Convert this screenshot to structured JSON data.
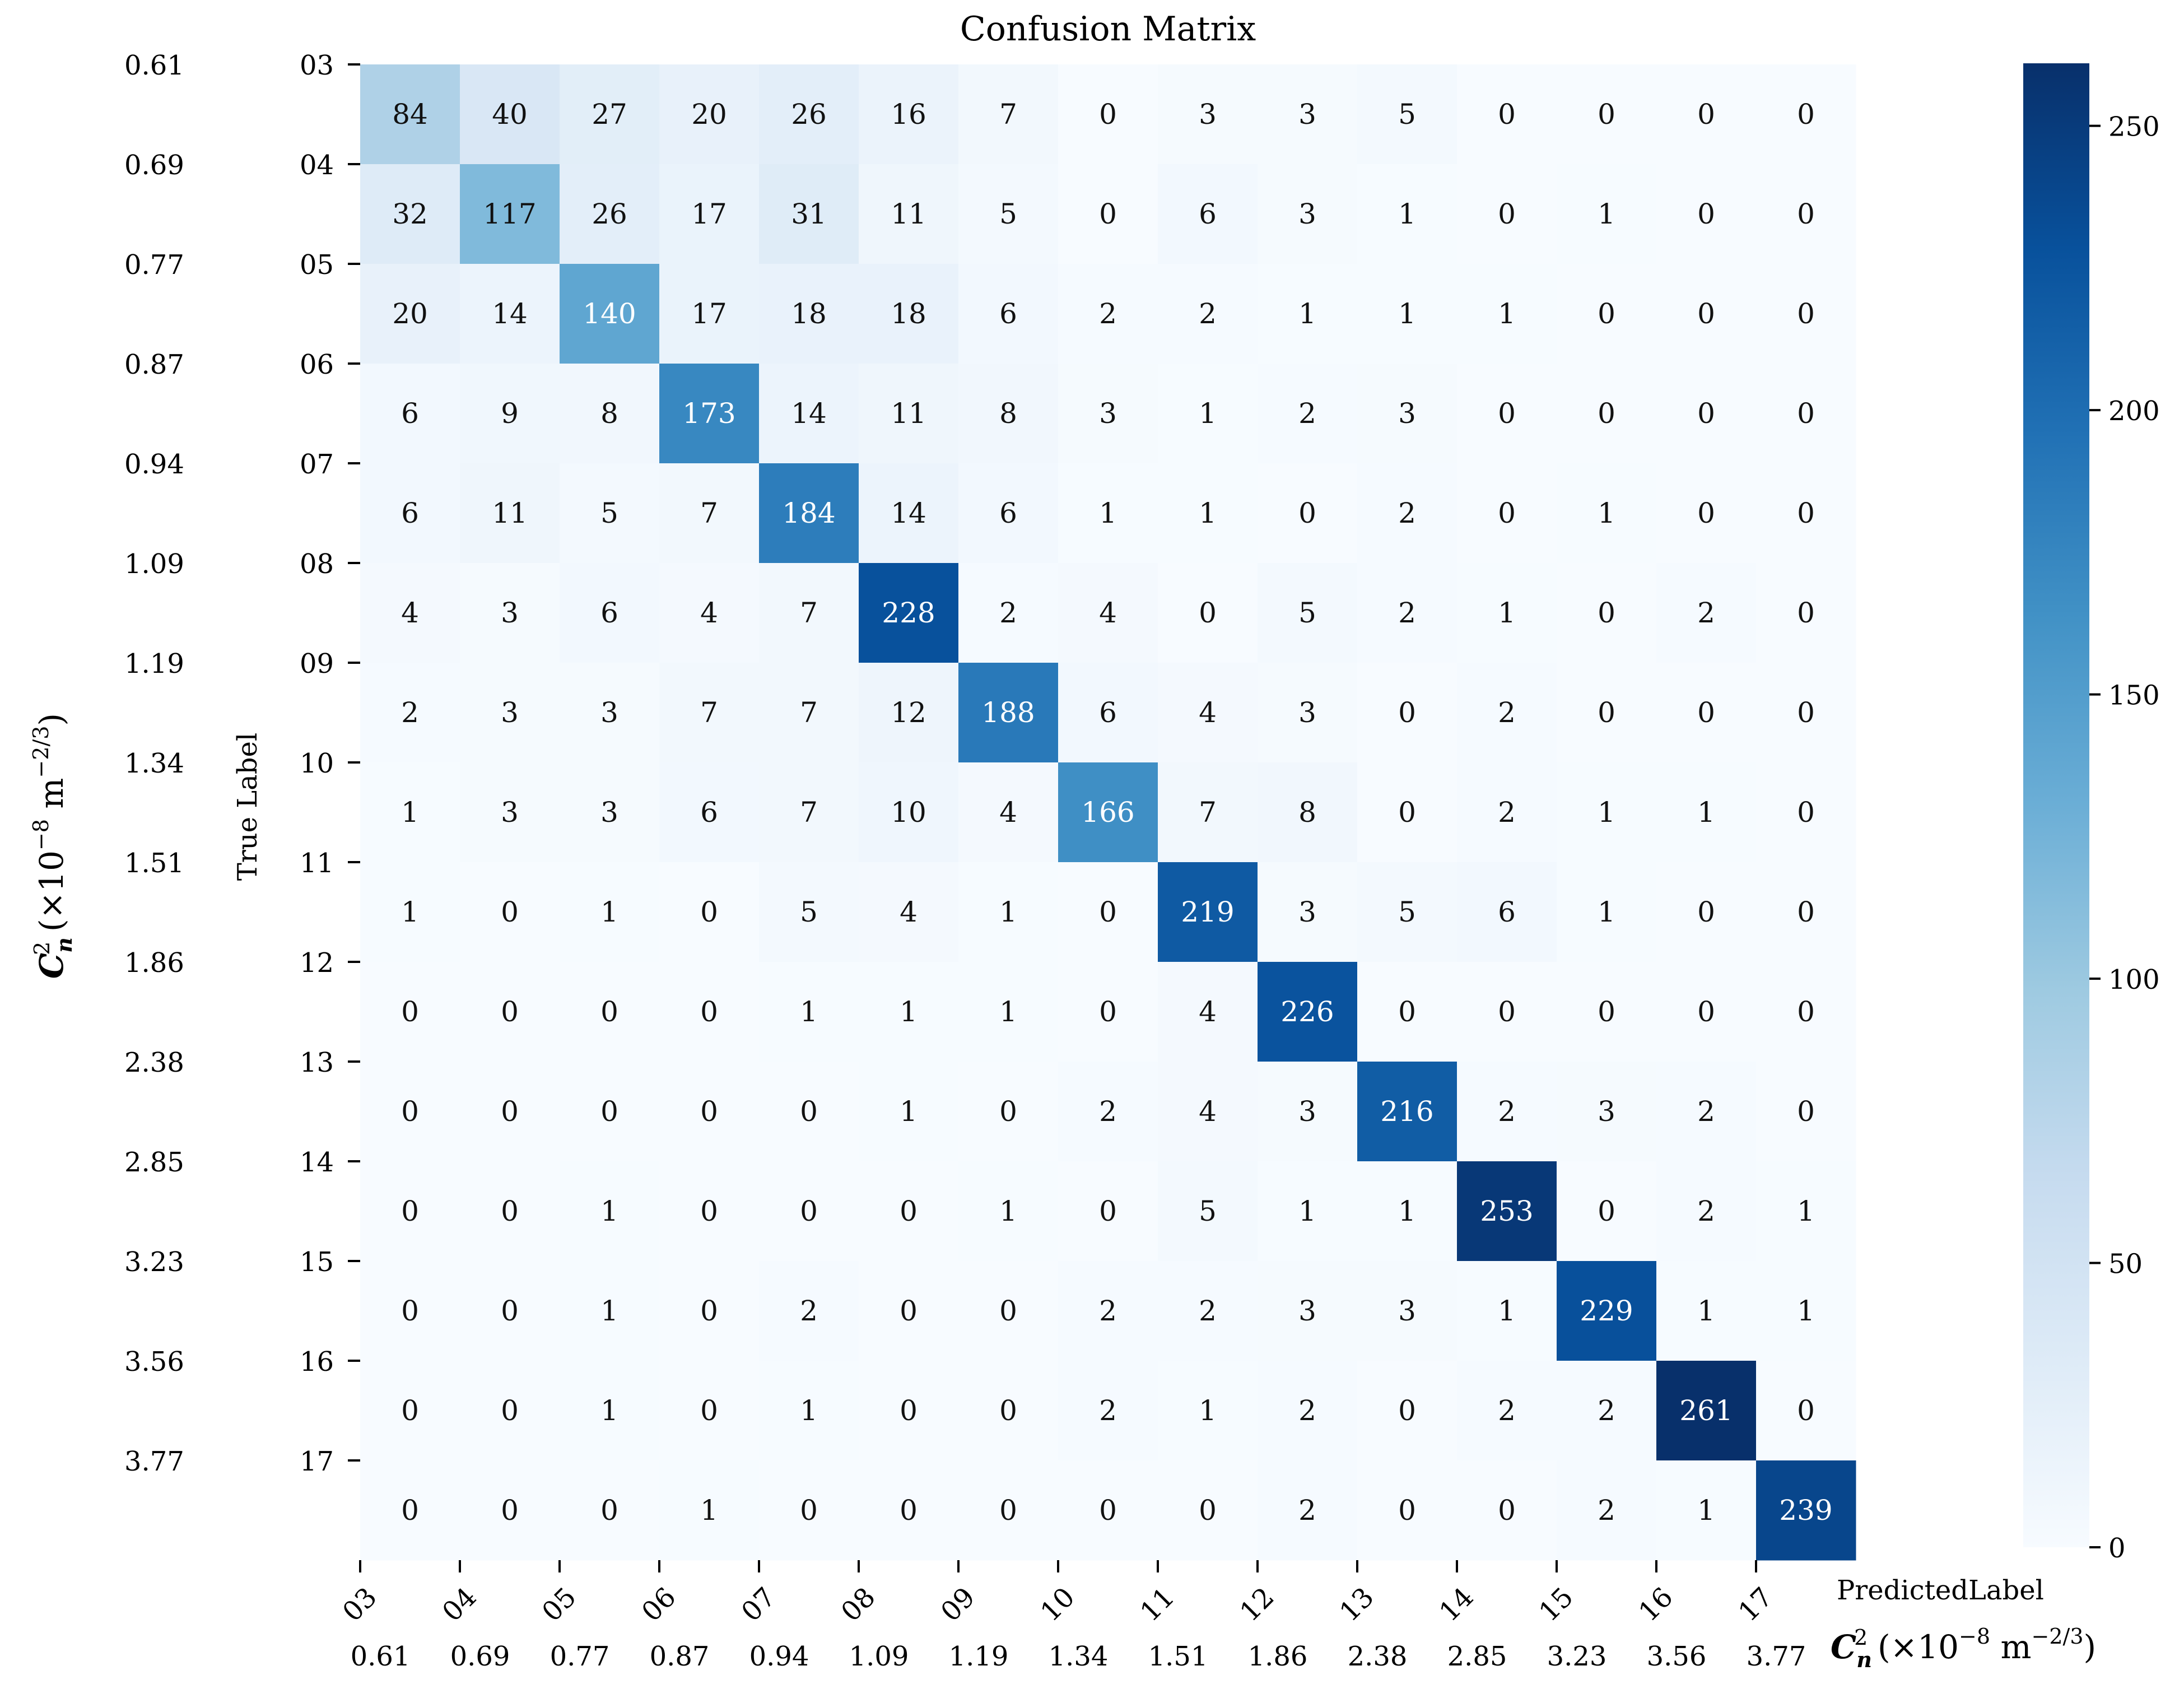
{
  "chart_data": {
    "type": "heatmap",
    "title": "Confusion Matrix",
    "xlabel": "PredictedLabel",
    "ylabel": "True Label",
    "cn2_axis_label": {
      "symbol": "C",
      "superscript": "2",
      "subscript": "n",
      "unit_open": "(×10",
      "unit_exp": "−8",
      "unit_mid": " m",
      "unit_exp2": "−2/3",
      "unit_close": ")"
    },
    "labels": [
      "03",
      "04",
      "05",
      "06",
      "07",
      "08",
      "09",
      "10",
      "11",
      "12",
      "13",
      "14",
      "15",
      "16",
      "17"
    ],
    "cn2_values": [
      "0.61",
      "0.69",
      "0.77",
      "0.87",
      "0.94",
      "1.09",
      "1.19",
      "1.34",
      "1.51",
      "1.86",
      "2.38",
      "2.85",
      "3.23",
      "3.56",
      "3.77"
    ],
    "matrix": [
      [
        84,
        40,
        27,
        20,
        26,
        16,
        7,
        0,
        3,
        3,
        5,
        0,
        0,
        0,
        0
      ],
      [
        32,
        117,
        26,
        17,
        31,
        11,
        5,
        0,
        6,
        3,
        1,
        0,
        1,
        0,
        0
      ],
      [
        20,
        14,
        140,
        17,
        18,
        18,
        6,
        2,
        2,
        1,
        1,
        1,
        0,
        0,
        0
      ],
      [
        6,
        9,
        8,
        173,
        14,
        11,
        8,
        3,
        1,
        2,
        3,
        0,
        0,
        0,
        0
      ],
      [
        6,
        11,
        5,
        7,
        184,
        14,
        6,
        1,
        1,
        0,
        2,
        0,
        1,
        0,
        0
      ],
      [
        4,
        3,
        6,
        4,
        7,
        228,
        2,
        4,
        0,
        5,
        2,
        1,
        0,
        2,
        0
      ],
      [
        2,
        3,
        3,
        7,
        7,
        12,
        188,
        6,
        4,
        3,
        0,
        2,
        0,
        0,
        0
      ],
      [
        1,
        3,
        3,
        6,
        7,
        10,
        4,
        166,
        7,
        8,
        0,
        2,
        1,
        1,
        0
      ],
      [
        1,
        0,
        1,
        0,
        5,
        4,
        1,
        0,
        219,
        3,
        5,
        6,
        1,
        0,
        0
      ],
      [
        0,
        0,
        0,
        0,
        1,
        1,
        1,
        0,
        4,
        226,
        0,
        0,
        0,
        0,
        0
      ],
      [
        0,
        0,
        0,
        0,
        0,
        1,
        0,
        2,
        4,
        3,
        216,
        2,
        3,
        2,
        0
      ],
      [
        0,
        0,
        1,
        0,
        0,
        0,
        1,
        0,
        5,
        1,
        1,
        253,
        0,
        2,
        1
      ],
      [
        0,
        0,
        1,
        0,
        2,
        0,
        0,
        2,
        2,
        3,
        3,
        1,
        229,
        1,
        1
      ],
      [
        0,
        0,
        1,
        0,
        1,
        0,
        0,
        2,
        1,
        2,
        0,
        2,
        2,
        261,
        0
      ],
      [
        0,
        0,
        0,
        1,
        0,
        0,
        0,
        0,
        0,
        2,
        0,
        0,
        2,
        1,
        239
      ]
    ],
    "colorbar": {
      "range": [
        0,
        261
      ],
      "ticks": [
        0,
        50,
        100,
        150,
        200,
        250
      ],
      "colormap": "Blues"
    },
    "grid": false
  }
}
